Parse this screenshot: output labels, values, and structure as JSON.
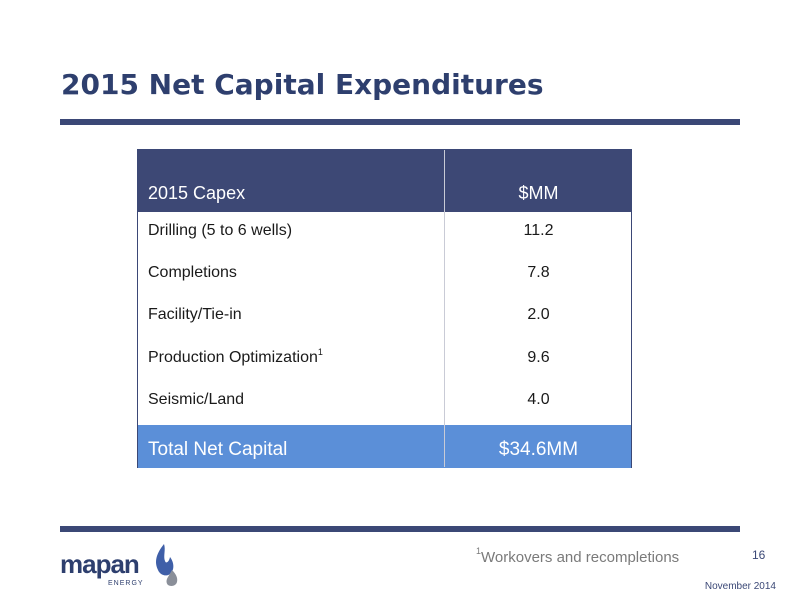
{
  "slide": {
    "title": "2015 Net Capital Expenditures"
  },
  "table": {
    "header": {
      "label": "2015 Capex",
      "unit": "$MM"
    },
    "rows": [
      {
        "label": "Drilling (5 to 6 wells)",
        "value": "11.2",
        "footnote": ""
      },
      {
        "label": "Completions",
        "value": "7.8",
        "footnote": ""
      },
      {
        "label": "Facility/Tie-in",
        "value": "2.0",
        "footnote": ""
      },
      {
        "label": "Production Optimization",
        "value": "9.6",
        "footnote": "1"
      },
      {
        "label": "Seismic/Land",
        "value": "4.0",
        "footnote": ""
      }
    ],
    "total": {
      "label": "Total Net Capital",
      "value": "$34.6MM"
    }
  },
  "footer": {
    "footnote_marker": "1",
    "footnote_text": "Workovers and recompletions",
    "page_number": "16",
    "date": "November 2014",
    "logo": {
      "name": "mapan",
      "sub": "ENERGY",
      "colors": {
        "text": "#2e3f6e",
        "flame": "#3f5fa8",
        "drop": "#8a8f99"
      }
    }
  },
  "colors": {
    "title": "#2e3f6e",
    "rule": "#3b4876",
    "header_bg": "#3d4875",
    "total_bg": "#5b8fd8"
  }
}
